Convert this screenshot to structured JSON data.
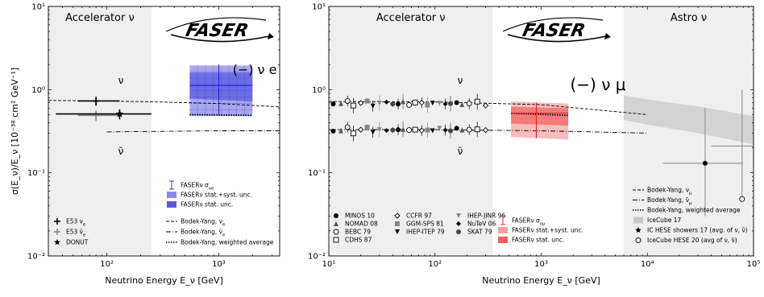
{
  "chart_data": [
    {
      "type": "scatter",
      "panel": "electron neutrino",
      "xlabel": "Neutrino Energy E_ν [GeV]",
      "ylabel": "σ(E_ν)/E_ν [10⁻³⁸ cm² GeV⁻¹]",
      "xscale": "log",
      "yscale": "log",
      "xlim": [
        30,
        3500
      ],
      "ylim": [
        0.01,
        10
      ],
      "grid": false,
      "regions": [
        {
          "label": "Accelerator ν",
          "x": [
            30,
            250
          ]
        }
      ],
      "logo": "FASER",
      "flavor_label": "(−) ν e",
      "curve_labels": [
        "ν",
        "ν̄"
      ],
      "x_tick_labels": [
        "10²",
        "10³"
      ],
      "y_tick_labels": [
        "10⁻²",
        "10⁻¹",
        "10⁰",
        "10¹"
      ],
      "series": [
        {
          "name": "E53 ν_e",
          "points": [
            {
              "x": 80,
              "y": 0.73,
              "xerr": [
                55,
                130
              ],
              "yerr": [
                0.64,
                0.82
              ]
            }
          ]
        },
        {
          "name": "E53 ν̄_e",
          "points": [
            {
              "x": 80,
              "y": 0.49,
              "xerr": [
                55,
                130
              ],
              "yerr": [
                0.42,
                0.56
              ]
            }
          ]
        },
        {
          "name": "DONUT",
          "points": [
            {
              "x": 130,
              "y": 0.51,
              "xerr": [
                35,
                250
              ],
              "yerr": [
                0.44,
                0.58
              ]
            }
          ]
        },
        {
          "name": "FASERν σ_νe",
          "points": [
            {
              "x": 1000,
              "y": 1.12,
              "xerr": [
                550,
                2000
              ],
              "yerr": [
                0.5,
                2.0
              ]
            }
          ]
        }
      ],
      "bands": [
        {
          "name": "FASERν stat.+syst. unc.",
          "x": [
            550,
            2000
          ],
          "y_low": [
            0.48,
            0.48
          ],
          "y_high": [
            1.95,
            1.95
          ],
          "color": "#8a8ae8"
        },
        {
          "name": "FASERν stat. unc.",
          "x": [
            550,
            2000
          ],
          "y_low": [
            0.78,
            0.72
          ],
          "y_high": [
            1.6,
            1.6
          ],
          "color": "#5a5ae0"
        }
      ],
      "curves": [
        {
          "name": "Bodek-Yang, ν_e",
          "style": "dashed",
          "x": [
            30,
            100,
            300,
            1000,
            3500
          ],
          "y": [
            0.74,
            0.73,
            0.71,
            0.68,
            0.62
          ]
        },
        {
          "name": "Bodek-Yang, ν̄_e",
          "style": "dashdot",
          "x": [
            100,
            300,
            1000,
            3500
          ],
          "y": [
            0.31,
            0.315,
            0.32,
            0.32
          ]
        },
        {
          "name": "Bodek-Yang, weighted average",
          "style": "dotted",
          "x": [
            550,
            2000
          ],
          "y": [
            0.5,
            0.49
          ]
        }
      ],
      "legend": {
        "left_block": [
          {
            "label": "E53 ν",
            "sub": "e",
            "marker": "plus",
            "color": "#000000"
          },
          {
            "label": "E53 ν̄",
            "sub": "e",
            "marker": "plus",
            "color": "#888888"
          },
          {
            "label": "DONUT",
            "sub": "",
            "marker": "star",
            "color": "#000000"
          }
        ],
        "faser_block": [
          {
            "label": "FASERν σ",
            "sub": "νe",
            "marker": "errbar",
            "color": "#2020e0"
          },
          {
            "label": "FASERν stat.+syst. unc.",
            "sub": "",
            "marker": "box",
            "color": "#8a8ae8"
          },
          {
            "label": "FASERν stat. unc.",
            "sub": "",
            "marker": "box",
            "color": "#5a5ae0"
          }
        ],
        "curve_block": [
          {
            "label": "Bodek-Yang, ν",
            "sub": "e",
            "marker": "dashed"
          },
          {
            "label": "Bodek-Yang, ν̄",
            "sub": "e",
            "marker": "dashdot"
          },
          {
            "label": "Bodek-Yang, weighted average",
            "sub": "",
            "marker": "dotted"
          }
        ]
      }
    },
    {
      "type": "scatter",
      "panel": "muon neutrino",
      "xlabel": "Neutrino Energy E_ν [GeV]",
      "ylabel": "",
      "xscale": "log",
      "yscale": "log",
      "xlim": [
        10,
        100000
      ],
      "ylim": [
        0.01,
        10
      ],
      "grid": false,
      "regions": [
        {
          "label": "Accelerator ν",
          "x": [
            10,
            350
          ]
        },
        {
          "label": "Astro ν",
          "x": [
            6000,
            100000
          ]
        }
      ],
      "logo": "FASER",
      "flavor_label": "(−) ν μ",
      "curve_labels": [
        "ν",
        "ν̄"
      ],
      "x_tick_labels": [
        "10¹",
        "10²",
        "10³",
        "10⁴",
        "10⁵"
      ],
      "y_tick_labels": [
        "10⁻²",
        "10⁻¹",
        "10⁰",
        "10¹"
      ],
      "accelerator_data": {
        "nu_x": [
          11,
          13,
          15,
          17,
          20,
          23,
          26,
          30,
          35,
          40,
          45,
          50,
          57,
          65,
          75,
          85,
          95,
          110,
          125,
          140,
          160,
          180,
          210,
          250,
          300
        ],
        "nu_y": [
          0.7,
          0.68,
          0.7,
          0.67,
          0.69,
          0.7,
          0.66,
          0.69,
          0.68,
          0.7,
          0.67,
          0.69,
          0.68,
          0.7,
          0.67,
          0.68,
          0.69,
          0.66,
          0.7,
          0.68,
          0.67,
          0.69,
          0.68,
          0.69,
          0.67
        ],
        "nubar_x": [
          11,
          13,
          15,
          17,
          20,
          23,
          26,
          30,
          35,
          40,
          45,
          50,
          57,
          65,
          75,
          85,
          95,
          110,
          125,
          140,
          160,
          180,
          210,
          250,
          300
        ],
        "nubar_y": [
          0.33,
          0.32,
          0.34,
          0.31,
          0.33,
          0.34,
          0.32,
          0.33,
          0.31,
          0.34,
          0.33,
          0.32,
          0.34,
          0.33,
          0.31,
          0.34,
          0.32,
          0.33,
          0.34,
          0.32,
          0.33,
          0.34,
          0.33,
          0.32,
          0.34
        ]
      },
      "series": [
        {
          "name": "FASERν σ_νμ",
          "points": [
            {
              "x": 900,
              "y": 0.52,
              "xerr": [
                520,
                1800
              ],
              "yerr": [
                0.26,
                0.7
              ]
            }
          ]
        },
        {
          "name": "IC HESE showers 17 (avg. of ν, ν̄)",
          "points": [
            {
              "x": 35000,
              "y": 0.13,
              "xerr": [
                14000,
                80000
              ],
              "yerr": [
                0.03,
                0.6
              ]
            }
          ]
        },
        {
          "name": "IceCube HESE 20 (avg of ν, ν̄)",
          "points": [
            {
              "x": 78000,
              "y": 0.21,
              "xerr": [
                40000,
                100000
              ],
              "yerr": [
                0.045,
                1.0
              ]
            }
          ]
        }
      ],
      "bands": [
        {
          "name": "FASERν stat.+syst. unc.",
          "x": [
            520,
            1800
          ],
          "y_low": [
            0.27,
            0.25
          ],
          "y_high": [
            0.72,
            0.68
          ],
          "color": "#f4a0a0"
        },
        {
          "name": "FASERν stat. unc.",
          "x": [
            520,
            1800
          ],
          "y_low": [
            0.39,
            0.37
          ],
          "y_high": [
            0.62,
            0.6
          ],
          "color": "#f06060"
        },
        {
          "name": "IceCube 17",
          "x": [
            6000,
            10000,
            30000,
            100000
          ],
          "y_low": [
            0.43,
            0.38,
            0.3,
            0.22
          ],
          "y_high": [
            0.85,
            0.76,
            0.63,
            0.48
          ],
          "color": "#c8c8c8"
        }
      ],
      "curves": [
        {
          "name": "Bodek-Yang, ν_μ",
          "style": "dashed",
          "x": [
            10,
            100,
            1000,
            10000
          ],
          "y": [
            0.72,
            0.71,
            0.66,
            0.5
          ]
        },
        {
          "name": "Bodek-Yang, ν̄_μ",
          "style": "dashdot",
          "x": [
            10,
            100,
            1000,
            10000
          ],
          "y": [
            0.33,
            0.33,
            0.32,
            0.3
          ]
        },
        {
          "name": "Bodek-Yang, weighted average",
          "style": "dotted",
          "x": [
            520,
            1800
          ],
          "y": [
            0.52,
            0.49
          ]
        }
      ],
      "legend": {
        "experiments": [
          {
            "label": "MINOS 10",
            "marker": "circle",
            "color": "#000000"
          },
          {
            "label": "NOMAD 08",
            "marker": "triangle",
            "color": "#555555"
          },
          {
            "label": "BEBC 79",
            "marker": "open-circle",
            "color": "#000000"
          },
          {
            "label": "CDHS 87",
            "marker": "open-square",
            "color": "#000000"
          },
          {
            "label": "CCFR 97",
            "marker": "open-diamond",
            "color": "#000000"
          },
          {
            "label": "GGM-SPS 81",
            "marker": "square",
            "color": "#888888"
          },
          {
            "label": "IHEP-ITEP 79",
            "marker": "triangle-down",
            "color": "#000000"
          },
          {
            "label": "IHEP-JINR 96",
            "marker": "triangle-down",
            "color": "#888888"
          },
          {
            "label": "NuTeV 06",
            "marker": "diamond",
            "color": "#000000"
          },
          {
            "label": "SKAT 79",
            "marker": "circle",
            "color": "#444444"
          }
        ],
        "faser_block": [
          {
            "label": "FASERν σ",
            "sub": "νμ",
            "marker": "errbar",
            "color": "#e02020"
          },
          {
            "label": "FASERν stat.+syst. unc.",
            "sub": "",
            "marker": "box",
            "color": "#f4a0a0"
          },
          {
            "label": "FASERν stat. unc.",
            "sub": "",
            "marker": "box",
            "color": "#f06060"
          }
        ],
        "curve_block": [
          {
            "label": "Bodek-Yang, ν",
            "sub": "μ",
            "marker": "dashed"
          },
          {
            "label": "Bodek-Yang, ν̄",
            "sub": "μ",
            "marker": "dashdot"
          },
          {
            "label": "Bodek-Yang, weighted average",
            "sub": "",
            "marker": "dotted"
          },
          {
            "label": "IceCube 17",
            "sub": "",
            "marker": "box",
            "color": "#c8c8c8"
          },
          {
            "label": "IC HESE showers 17 (avg. of ν, ν̄)",
            "sub": "",
            "marker": "star"
          },
          {
            "label": "IceCube HESE 20 (avg of ν, ν̄)",
            "sub": "",
            "marker": "open-circle"
          }
        ]
      }
    }
  ]
}
